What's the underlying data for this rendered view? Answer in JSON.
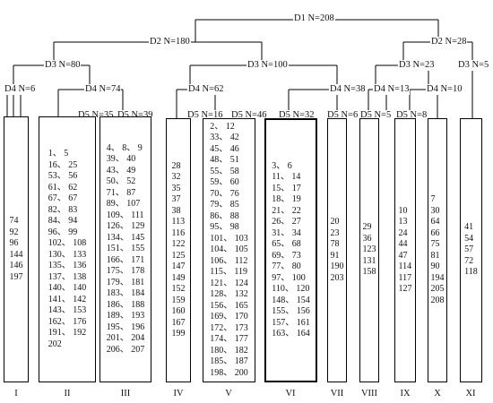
{
  "nodes": {
    "D1": "D1 N=208",
    "D2_left": "D2 N=180",
    "D2_right": "D2 N=28",
    "D3_a": "D3 N=80",
    "D3_b": "D3 N=100",
    "D3_c": "D3 N=23",
    "D3_d": "D3 N=5",
    "D4_a": "D4 N=6",
    "D4_b": "D4 N=74",
    "D4_c": "D4 N=62",
    "D4_d": "D4 N=38",
    "D4_e": "D4 N=13",
    "D4_f": "D4 N=10",
    "D5_a": "D5 N=35",
    "D5_b": "D5 N=39",
    "D5_c": "D5 N=16",
    "D5_d": "D5 N=46",
    "D5_e": "D5 N=32",
    "D5_f": "D5 N=6",
    "D5_g": "D5 N=5",
    "D5_h": "D5 N=8"
  },
  "clusters": [
    {
      "id": "I",
      "rows": [
        "74",
        "92",
        "96",
        "144",
        "146",
        "197"
      ]
    },
    {
      "id": "II",
      "rows": [
        "1、 5",
        "16、 25",
        "53、 56",
        "61、 62",
        "67、 67",
        "82、 83",
        "84、 94",
        "96、 99",
        "102、 108",
        "130、 133",
        "135、 136",
        "137、 138",
        "140、 140",
        "141、 142",
        "143、 153",
        "162、 176",
        "191、 192",
        "202"
      ]
    },
    {
      "id": "III",
      "rows": [
        "4、 8、 9",
        "39、 40",
        "43、 49",
        "50、 52",
        "71、 87",
        "89、 107",
        "109、 111",
        "126、 129",
        "134、 145",
        "151、 155",
        "166、 171",
        "175、 178",
        "179、 181",
        "183、 184",
        "186、 188",
        "189、 193",
        "195、 196",
        "201、 204",
        "206、 207"
      ]
    },
    {
      "id": "IV",
      "rows": [
        "28",
        "32",
        "35",
        "37",
        "38",
        "113",
        "116",
        "122",
        "125",
        "147",
        "149",
        "152",
        "159",
        "160",
        "167",
        "199"
      ]
    },
    {
      "id": "V",
      "rows": [
        "2、 12",
        "33、 42",
        "45、 46",
        "48、 51",
        "55、 58",
        "59、 60",
        "70、 76",
        "79、 85",
        "86、 88",
        "95、 98",
        "101、 103",
        "104、 105",
        "106、 112",
        "115、 119",
        "121、 124",
        "128、 132",
        "156、 165",
        "169、 170",
        "172、 173",
        "174、 177",
        "180、 182",
        "185、 187",
        "198、 200"
      ]
    },
    {
      "id": "VI",
      "rows": [
        "3、 6",
        "11、 14",
        "15、 17",
        "18、 19",
        "21、 22",
        "26、 27",
        "31、 34",
        "65、 68",
        "69、 73",
        "77、 80",
        "97、 100",
        "110、 120",
        "148、 154",
        "155、 156",
        "157、 161",
        "163、 164"
      ]
    },
    {
      "id": "VII",
      "rows": [
        "20",
        "23",
        "78",
        "91",
        "190",
        "203"
      ]
    },
    {
      "id": "VIII",
      "rows": [
        "29",
        "36",
        "123",
        "131",
        "158"
      ]
    },
    {
      "id": "IX",
      "rows": [
        "10",
        "13",
        "24",
        "44",
        "47",
        "114",
        "117",
        "127"
      ]
    },
    {
      "id": "X",
      "rows": [
        "7",
        "30",
        "64",
        "66",
        "75",
        "81",
        "90",
        "194",
        "205",
        "208"
      ]
    },
    {
      "id": "XI",
      "rows": [
        "41",
        "54",
        "57",
        "72",
        "118"
      ]
    }
  ]
}
